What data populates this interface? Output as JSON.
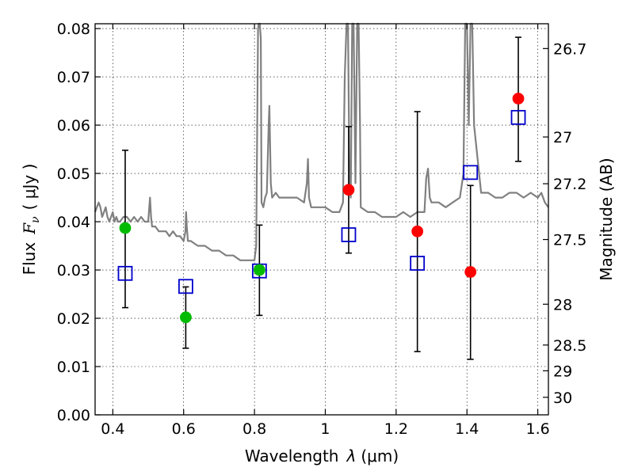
{
  "chart_data": {
    "type": "scatter",
    "title": "",
    "xlabel": "Wavelength",
    "xlabel_symbol": "λ",
    "xlabel_unit": "(μm)",
    "ylabel": "Flux",
    "ylabel_symbol": "F",
    "ylabel_subscript": "ν",
    "ylabel_unit": "( μJy )",
    "y2label": "Magnitude (AB)",
    "xlim": [
      0.35,
      1.63
    ],
    "ylim": [
      0.0,
      0.081
    ],
    "grid": true,
    "x_ticks": [
      "0.4",
      "0.6",
      "0.8",
      "1",
      "1.2",
      "1.4",
      "1.6"
    ],
    "y_ticks": [
      "0.00",
      "0.01",
      "0.02",
      "0.03",
      "0.04",
      "0.05",
      "0.06",
      "0.07",
      "0.08"
    ],
    "y2_ticks": [
      {
        "label": "26.7",
        "mag": 26.7
      },
      {
        "label": "27",
        "mag": 27.0
      },
      {
        "label": "27.2",
        "mag": 27.2
      },
      {
        "label": "27.5",
        "mag": 27.5
      },
      {
        "label": "28",
        "mag": 28.0
      },
      {
        "label": "28.5",
        "mag": 28.5
      },
      {
        "label": "29",
        "mag": 29.0
      },
      {
        "label": "30",
        "mag": 30.0
      }
    ],
    "colors": {
      "model": "#808080",
      "observed_high": "#ff0000",
      "observed_low": "#00bb00",
      "model_photometry": "#0000cc",
      "errorbar": "#000000"
    },
    "model_spectrum": {
      "x": [
        0.35,
        0.36,
        0.365,
        0.37,
        0.375,
        0.38,
        0.385,
        0.39,
        0.395,
        0.4,
        0.405,
        0.41,
        0.415,
        0.42,
        0.43,
        0.44,
        0.45,
        0.46,
        0.47,
        0.48,
        0.49,
        0.5,
        0.505,
        0.508,
        0.511,
        0.52,
        0.53,
        0.54,
        0.55,
        0.56,
        0.57,
        0.58,
        0.59,
        0.6,
        0.605,
        0.607,
        0.609,
        0.612,
        0.62,
        0.64,
        0.66,
        0.68,
        0.7,
        0.72,
        0.74,
        0.76,
        0.78,
        0.8,
        0.805,
        0.81,
        0.812,
        0.815,
        0.818,
        0.82,
        0.825,
        0.83,
        0.835,
        0.84,
        0.842,
        0.846,
        0.85,
        0.86,
        0.87,
        0.88,
        0.9,
        0.92,
        0.94,
        0.948,
        0.951,
        0.954,
        0.96,
        0.98,
        1.0,
        1.02,
        1.04,
        1.05,
        1.055,
        1.06,
        1.064,
        1.068,
        1.072,
        1.076,
        1.08,
        1.085,
        1.09,
        1.094,
        1.098,
        1.1,
        1.12,
        1.14,
        1.16,
        1.18,
        1.2,
        1.22,
        1.24,
        1.26,
        1.28,
        1.285,
        1.29,
        1.295,
        1.3,
        1.32,
        1.34,
        1.36,
        1.38,
        1.39,
        1.395,
        1.4,
        1.405,
        1.41,
        1.415,
        1.42,
        1.44,
        1.46,
        1.48,
        1.5,
        1.52,
        1.54,
        1.56,
        1.58,
        1.6,
        1.61,
        1.62,
        1.63
      ],
      "y": [
        0.042,
        0.044,
        0.043,
        0.041,
        0.042,
        0.043,
        0.041,
        0.04,
        0.041,
        0.042,
        0.04,
        0.041,
        0.04,
        0.04,
        0.041,
        0.041,
        0.04,
        0.041,
        0.04,
        0.041,
        0.04,
        0.04,
        0.045,
        0.041,
        0.039,
        0.039,
        0.038,
        0.038,
        0.038,
        0.037,
        0.038,
        0.037,
        0.037,
        0.036,
        0.038,
        0.042,
        0.039,
        0.036,
        0.036,
        0.035,
        0.035,
        0.034,
        0.034,
        0.033,
        0.033,
        0.032,
        0.032,
        0.032,
        0.035,
        0.08,
        0.081,
        0.081,
        0.078,
        0.044,
        0.043,
        0.045,
        0.046,
        0.06,
        0.064,
        0.048,
        0.045,
        0.046,
        0.045,
        0.045,
        0.045,
        0.045,
        0.044,
        0.048,
        0.053,
        0.045,
        0.043,
        0.043,
        0.043,
        0.042,
        0.042,
        0.044,
        0.07,
        0.081,
        0.081,
        0.05,
        0.045,
        0.081,
        0.081,
        0.048,
        0.081,
        0.081,
        0.06,
        0.043,
        0.042,
        0.042,
        0.041,
        0.041,
        0.041,
        0.042,
        0.041,
        0.042,
        0.042,
        0.049,
        0.051,
        0.045,
        0.044,
        0.044,
        0.043,
        0.044,
        0.045,
        0.05,
        0.081,
        0.081,
        0.06,
        0.081,
        0.081,
        0.06,
        0.046,
        0.046,
        0.045,
        0.045,
        0.046,
        0.046,
        0.045,
        0.046,
        0.045,
        0.046,
        0.044,
        0.043
      ]
    },
    "observed_flux": [
      {
        "x": 0.435,
        "y": 0.0387,
        "color_key": "observed_low"
      },
      {
        "x": 0.606,
        "y": 0.0202,
        "color_key": "observed_low"
      },
      {
        "x": 0.814,
        "y": 0.03,
        "color_key": "observed_low"
      },
      {
        "x": 1.066,
        "y": 0.0466,
        "color_key": "observed_high"
      },
      {
        "x": 1.26,
        "y": 0.038,
        "color_key": "observed_high"
      },
      {
        "x": 1.41,
        "y": 0.0296,
        "color_key": "observed_high"
      },
      {
        "x": 1.545,
        "y": 0.0655,
        "color_key": "observed_high"
      }
    ],
    "error_bars": [
      {
        "x": 0.435,
        "low": 0.0222,
        "high": 0.0548
      },
      {
        "x": 0.606,
        "low": 0.0138,
        "high": 0.0265
      },
      {
        "x": 0.814,
        "low": 0.0206,
        "high": 0.0393
      },
      {
        "x": 1.066,
        "low": 0.0335,
        "high": 0.0597
      },
      {
        "x": 1.26,
        "low": 0.0131,
        "high": 0.0628
      },
      {
        "x": 1.41,
        "low": 0.0115,
        "high": 0.0475
      },
      {
        "x": 1.545,
        "low": 0.0525,
        "high": 0.0782
      }
    ],
    "model_photometry": [
      {
        "x": 0.435,
        "y": 0.0293
      },
      {
        "x": 0.606,
        "y": 0.0266
      },
      {
        "x": 0.814,
        "y": 0.0298
      },
      {
        "x": 1.066,
        "y": 0.0373
      },
      {
        "x": 1.26,
        "y": 0.0314
      },
      {
        "x": 1.41,
        "y": 0.0502
      },
      {
        "x": 1.545,
        "y": 0.0616
      }
    ]
  }
}
